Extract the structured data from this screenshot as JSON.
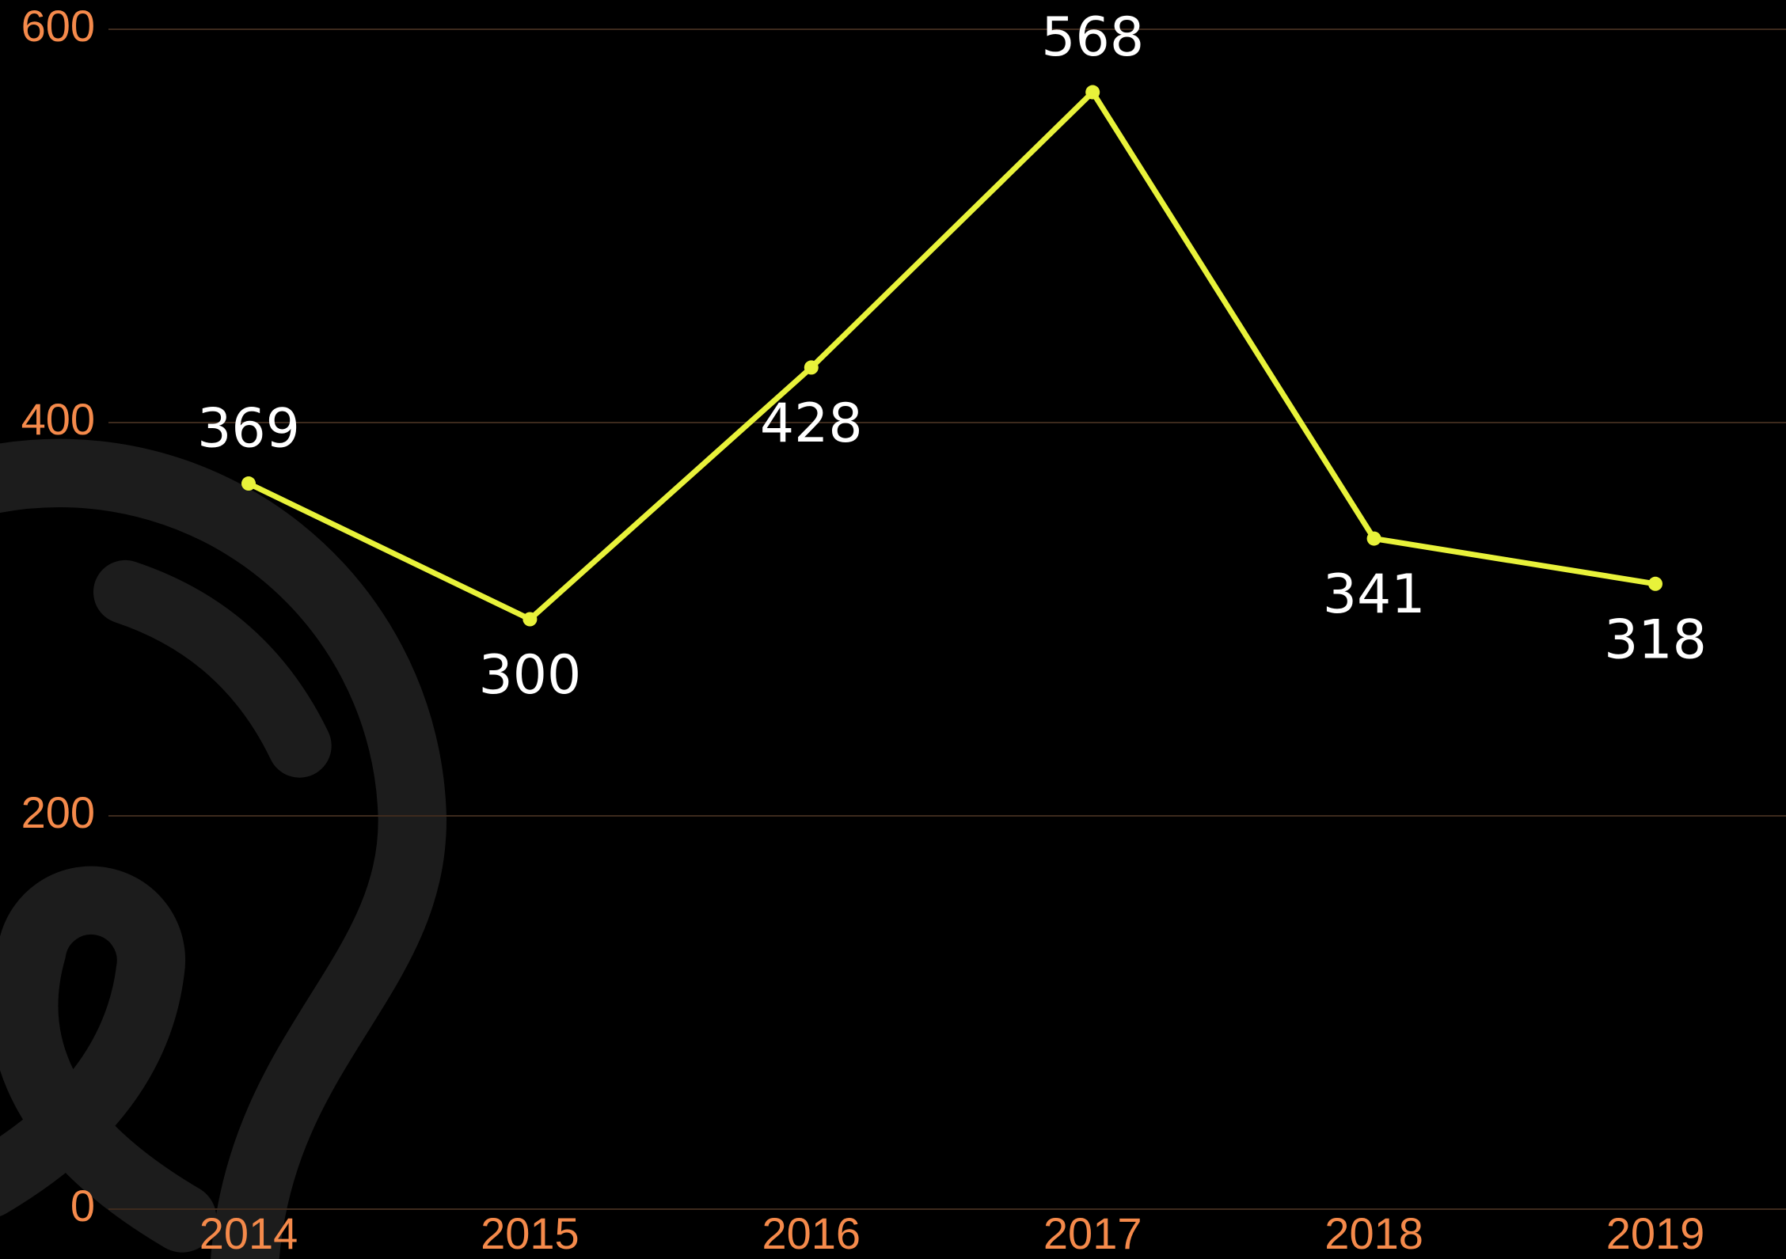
{
  "chart_data": {
    "type": "line",
    "categories": [
      "2014",
      "2015",
      "2016",
      "2017",
      "2018",
      "2019"
    ],
    "values": [
      369,
      300,
      428,
      568,
      341,
      318
    ],
    "color": "#e8f23a",
    "ylim": [
      0,
      600
    ],
    "yticks": [
      0,
      200,
      400,
      600
    ],
    "grid": true
  }
}
